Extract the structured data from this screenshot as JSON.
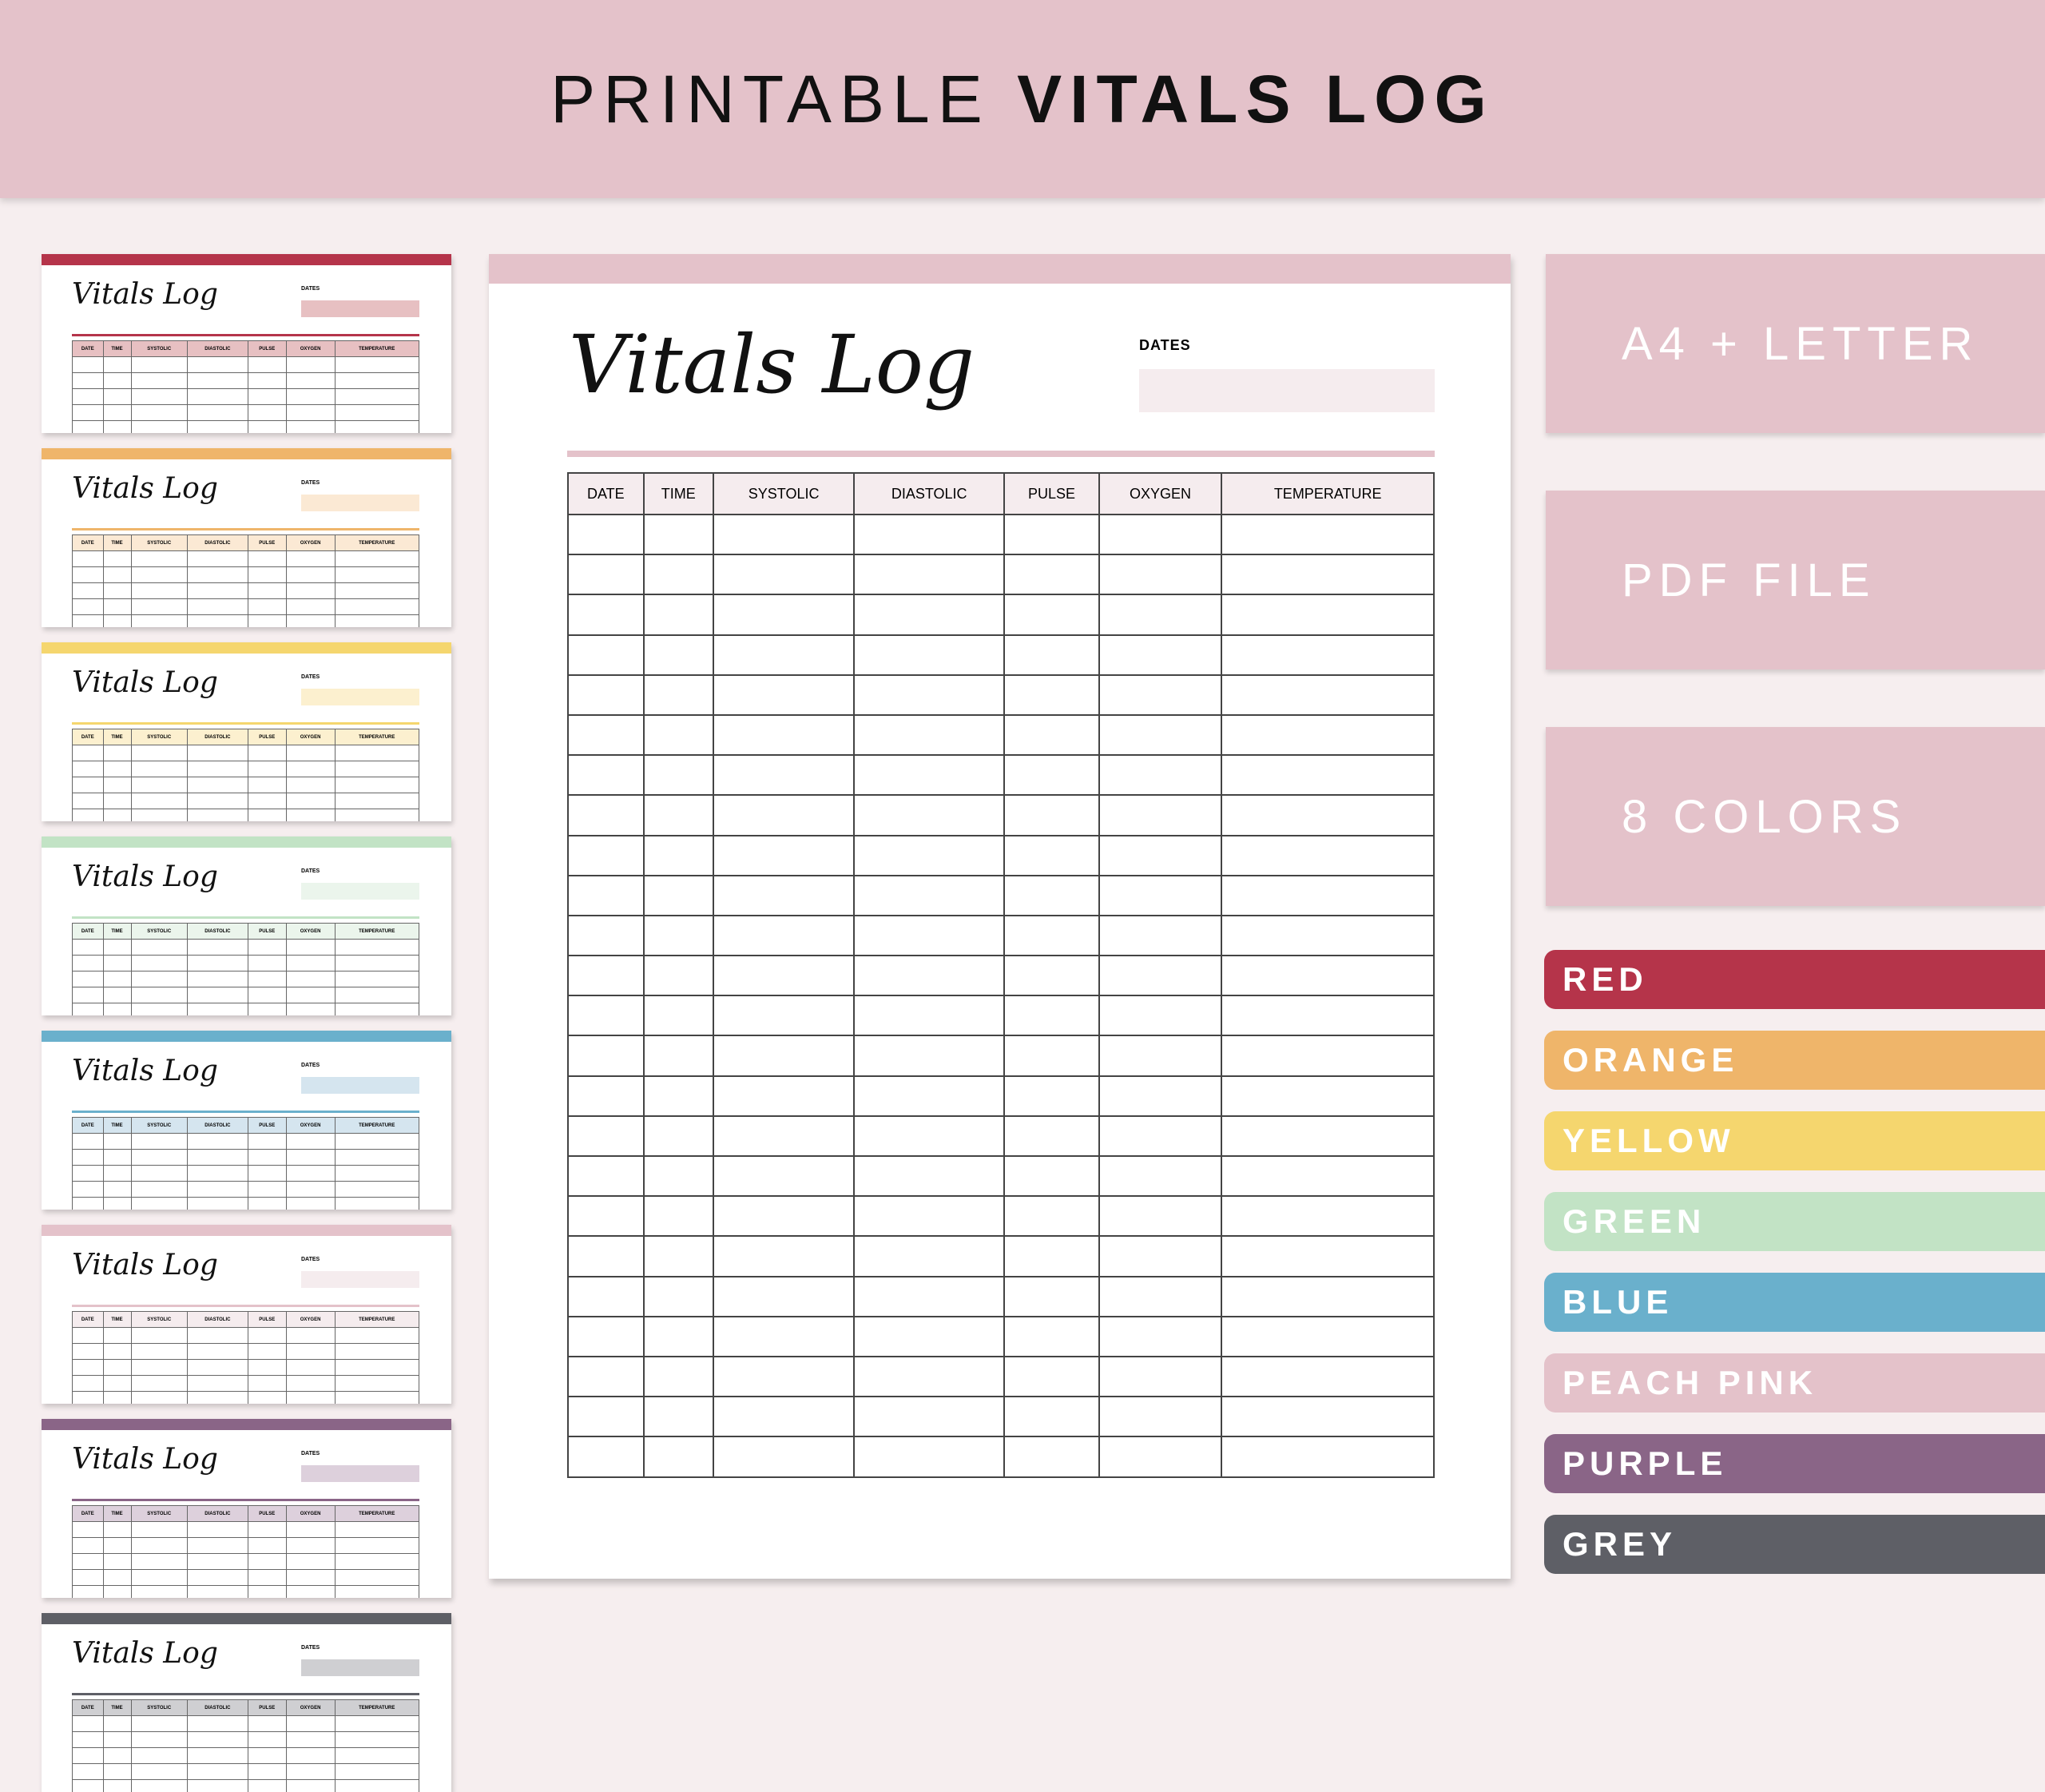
{
  "header": {
    "title_light": "PRINTABLE",
    "title_bold": "VITALS LOG"
  },
  "template": {
    "title": "Vitals Log",
    "dates_label": "DATES",
    "columns": [
      "DATE",
      "TIME",
      "SYSTOLIC",
      "DIASTOLIC",
      "PULSE",
      "OXYGEN",
      "TEMPERATURE"
    ],
    "row_count": 24
  },
  "features": [
    "A4 + LETTER",
    "PDF FILE",
    "8 COLORS"
  ],
  "colors": [
    {
      "name": "RED",
      "hex": "#b5344a",
      "light": "#e7c0c2"
    },
    {
      "name": "ORANGE",
      "hex": "#efb56a",
      "light": "#fbe9d4"
    },
    {
      "name": "YELLOW",
      "hex": "#f5d66e",
      "light": "#fcf0cf"
    },
    {
      "name": "GREEN",
      "hex": "#c2e3c5",
      "light": "#ebf5ec"
    },
    {
      "name": "BLUE",
      "hex": "#6ab0cc",
      "light": "#d5e5ef"
    },
    {
      "name": "PEACH PINK",
      "hex": "#e4c2ca",
      "light": "#f5ecee"
    },
    {
      "name": "PURPLE",
      "hex": "#8a6587",
      "light": "#ddd0dc"
    },
    {
      "name": "GREY",
      "hex": "#5e5f66",
      "light": "#cfcfd2"
    }
  ]
}
